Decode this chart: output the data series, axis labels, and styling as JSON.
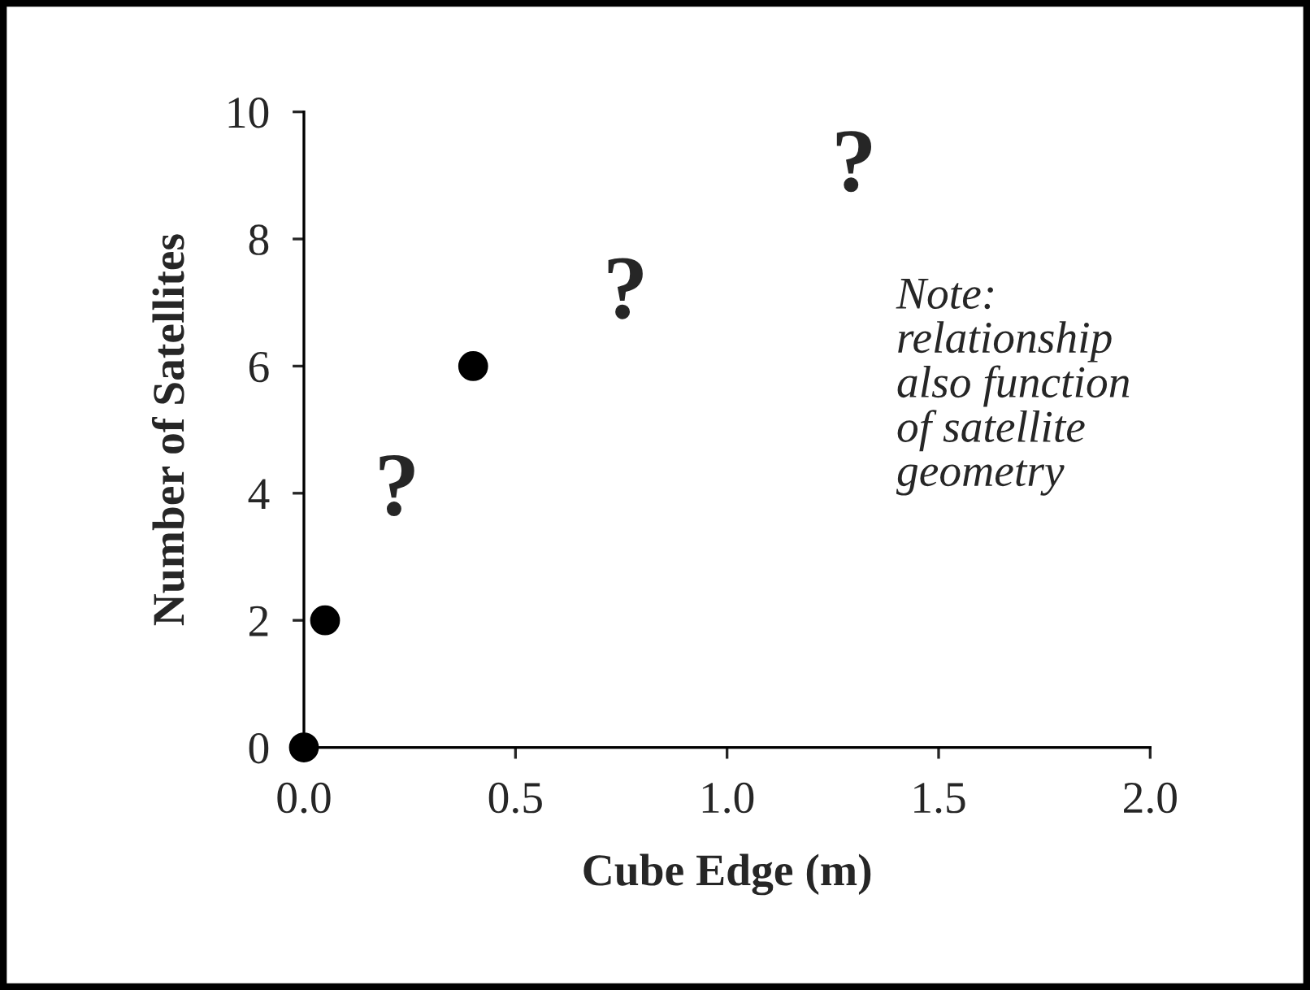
{
  "chart_data": {
    "type": "scatter",
    "xlabel": "Cube Edge (m)",
    "ylabel": "Number of Satellites",
    "x": [
      0.0,
      0.05,
      0.4
    ],
    "series": [
      {
        "color": "#000000",
        "values": [
          0,
          2,
          6
        ]
      }
    ],
    "marker": "circle",
    "xlim": [
      0,
      2
    ],
    "ylim": [
      0,
      10
    ],
    "xticks": [
      {
        "value": 0,
        "label": "0.0"
      },
      {
        "value": 0.5,
        "label": "0.5"
      },
      {
        "value": 1,
        "label": "1.0"
      },
      {
        "value": 1.5,
        "label": "1.5"
      },
      {
        "value": 2,
        "label": "2.0"
      }
    ],
    "yticks": [
      0,
      2,
      4,
      6,
      8,
      10
    ],
    "grid": false,
    "legend": false,
    "annotations": [
      "?",
      "?",
      "?",
      "Note:\nrelationship\nalso function\nof satellite\ngeometry"
    ]
  }
}
